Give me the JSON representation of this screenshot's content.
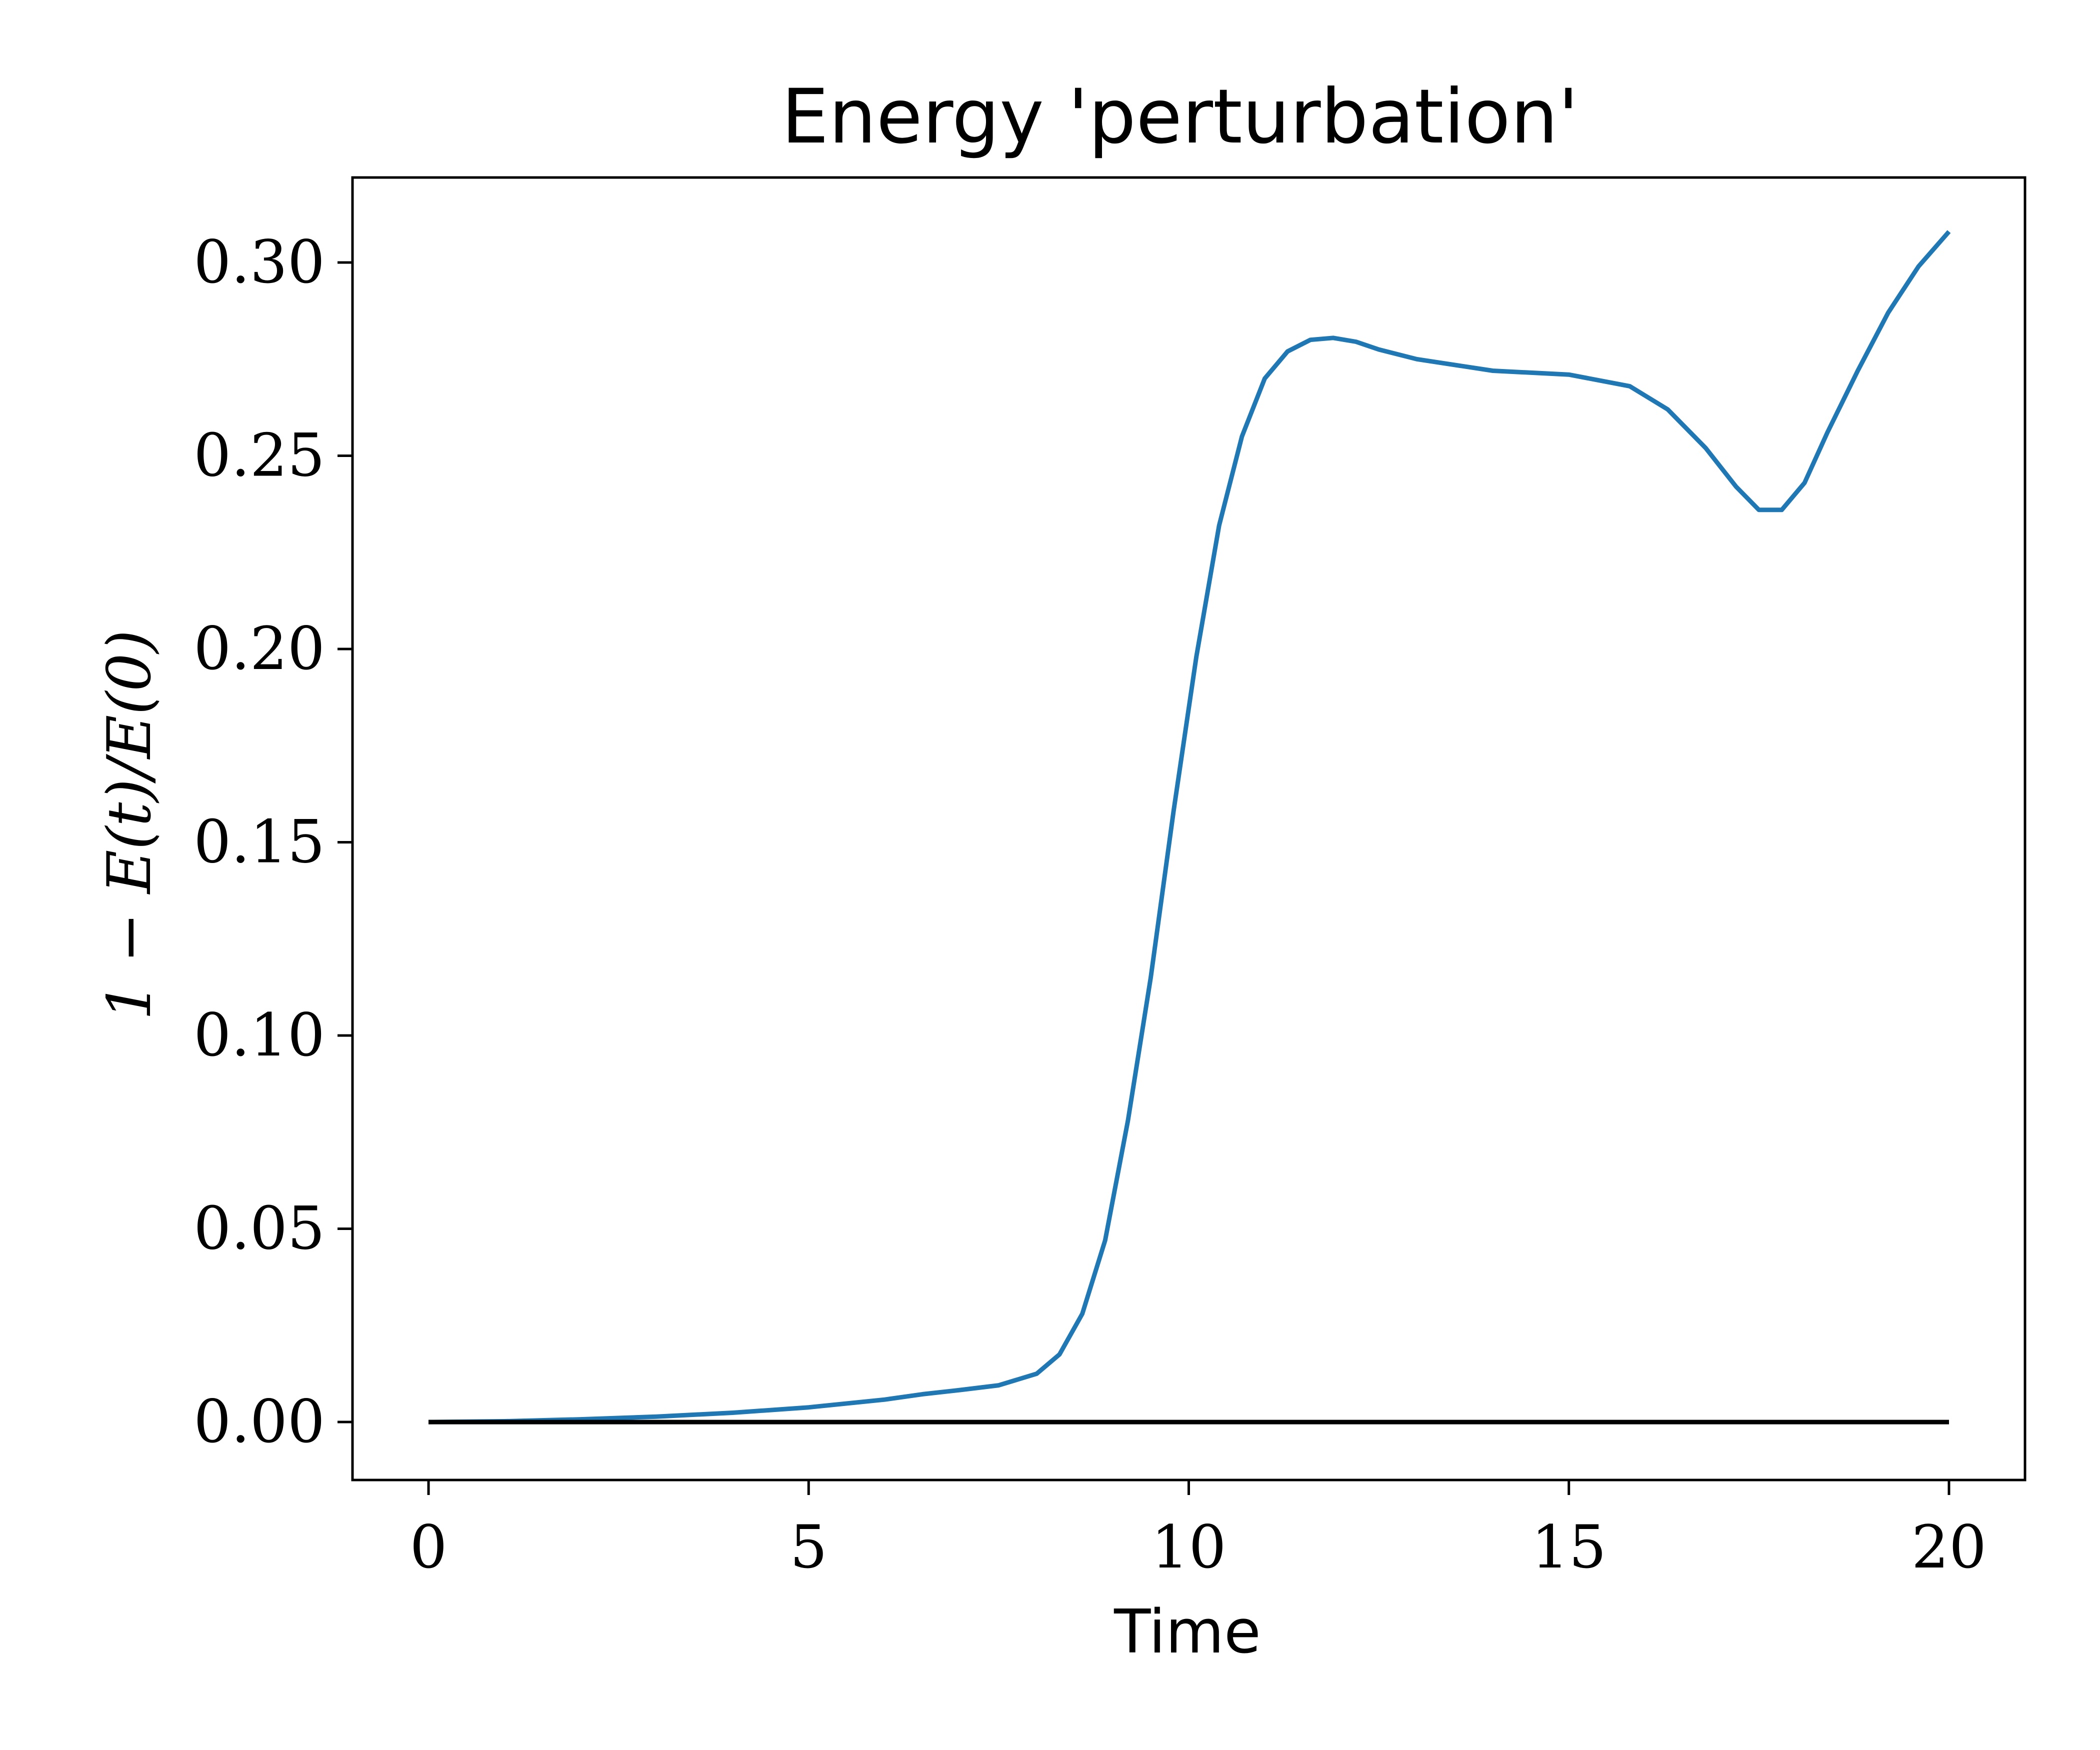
{
  "chart_data": {
    "type": "line",
    "title": "Energy 'perturbation'",
    "xlabel": "Time",
    "ylabel": "1 − E(t)/E(0)",
    "xlim": [
      -1,
      21
    ],
    "ylim": [
      -0.015,
      0.322
    ],
    "xticks": [
      0,
      5,
      10,
      15,
      20
    ],
    "xtick_labels": [
      "0",
      "5",
      "10",
      "15",
      "20"
    ],
    "yticks": [
      0.0,
      0.05,
      0.1,
      0.15,
      0.2,
      0.25,
      0.3
    ],
    "ytick_labels": [
      "0.00",
      "0.05",
      "0.10",
      "0.15",
      "0.20",
      "0.25",
      "0.30"
    ],
    "grid": false,
    "series": [
      {
        "color": "#1f77b4",
        "x": [
          0,
          1,
          2,
          3,
          4,
          5,
          6,
          6.5,
          7,
          7.5,
          8,
          8.3,
          8.6,
          8.9,
          9.2,
          9.5,
          9.8,
          10.1,
          10.4,
          10.7,
          11.0,
          11.3,
          11.6,
          11.9,
          12.2,
          12.5,
          13.0,
          14.0,
          15.0,
          15.8,
          16.3,
          16.8,
          17.2,
          17.5,
          17.8,
          18.1,
          18.4,
          18.8,
          19.2,
          19.6,
          20.0
        ],
        "y": [
          0.0,
          0.0002,
          0.0007,
          0.0014,
          0.0024,
          0.0038,
          0.0058,
          0.0072,
          0.0083,
          0.0095,
          0.0125,
          0.0175,
          0.028,
          0.047,
          0.078,
          0.115,
          0.158,
          0.198,
          0.232,
          0.255,
          0.27,
          0.277,
          0.28,
          0.2805,
          0.2795,
          0.2775,
          0.275,
          0.272,
          0.271,
          0.268,
          0.262,
          0.252,
          0.242,
          0.236,
          0.236,
          0.243,
          0.256,
          0.272,
          0.287,
          0.299,
          0.308
        ]
      },
      {
        "color": "#000000",
        "x": [
          0,
          20
        ],
        "y": [
          0.0,
          0.0
        ]
      }
    ]
  }
}
